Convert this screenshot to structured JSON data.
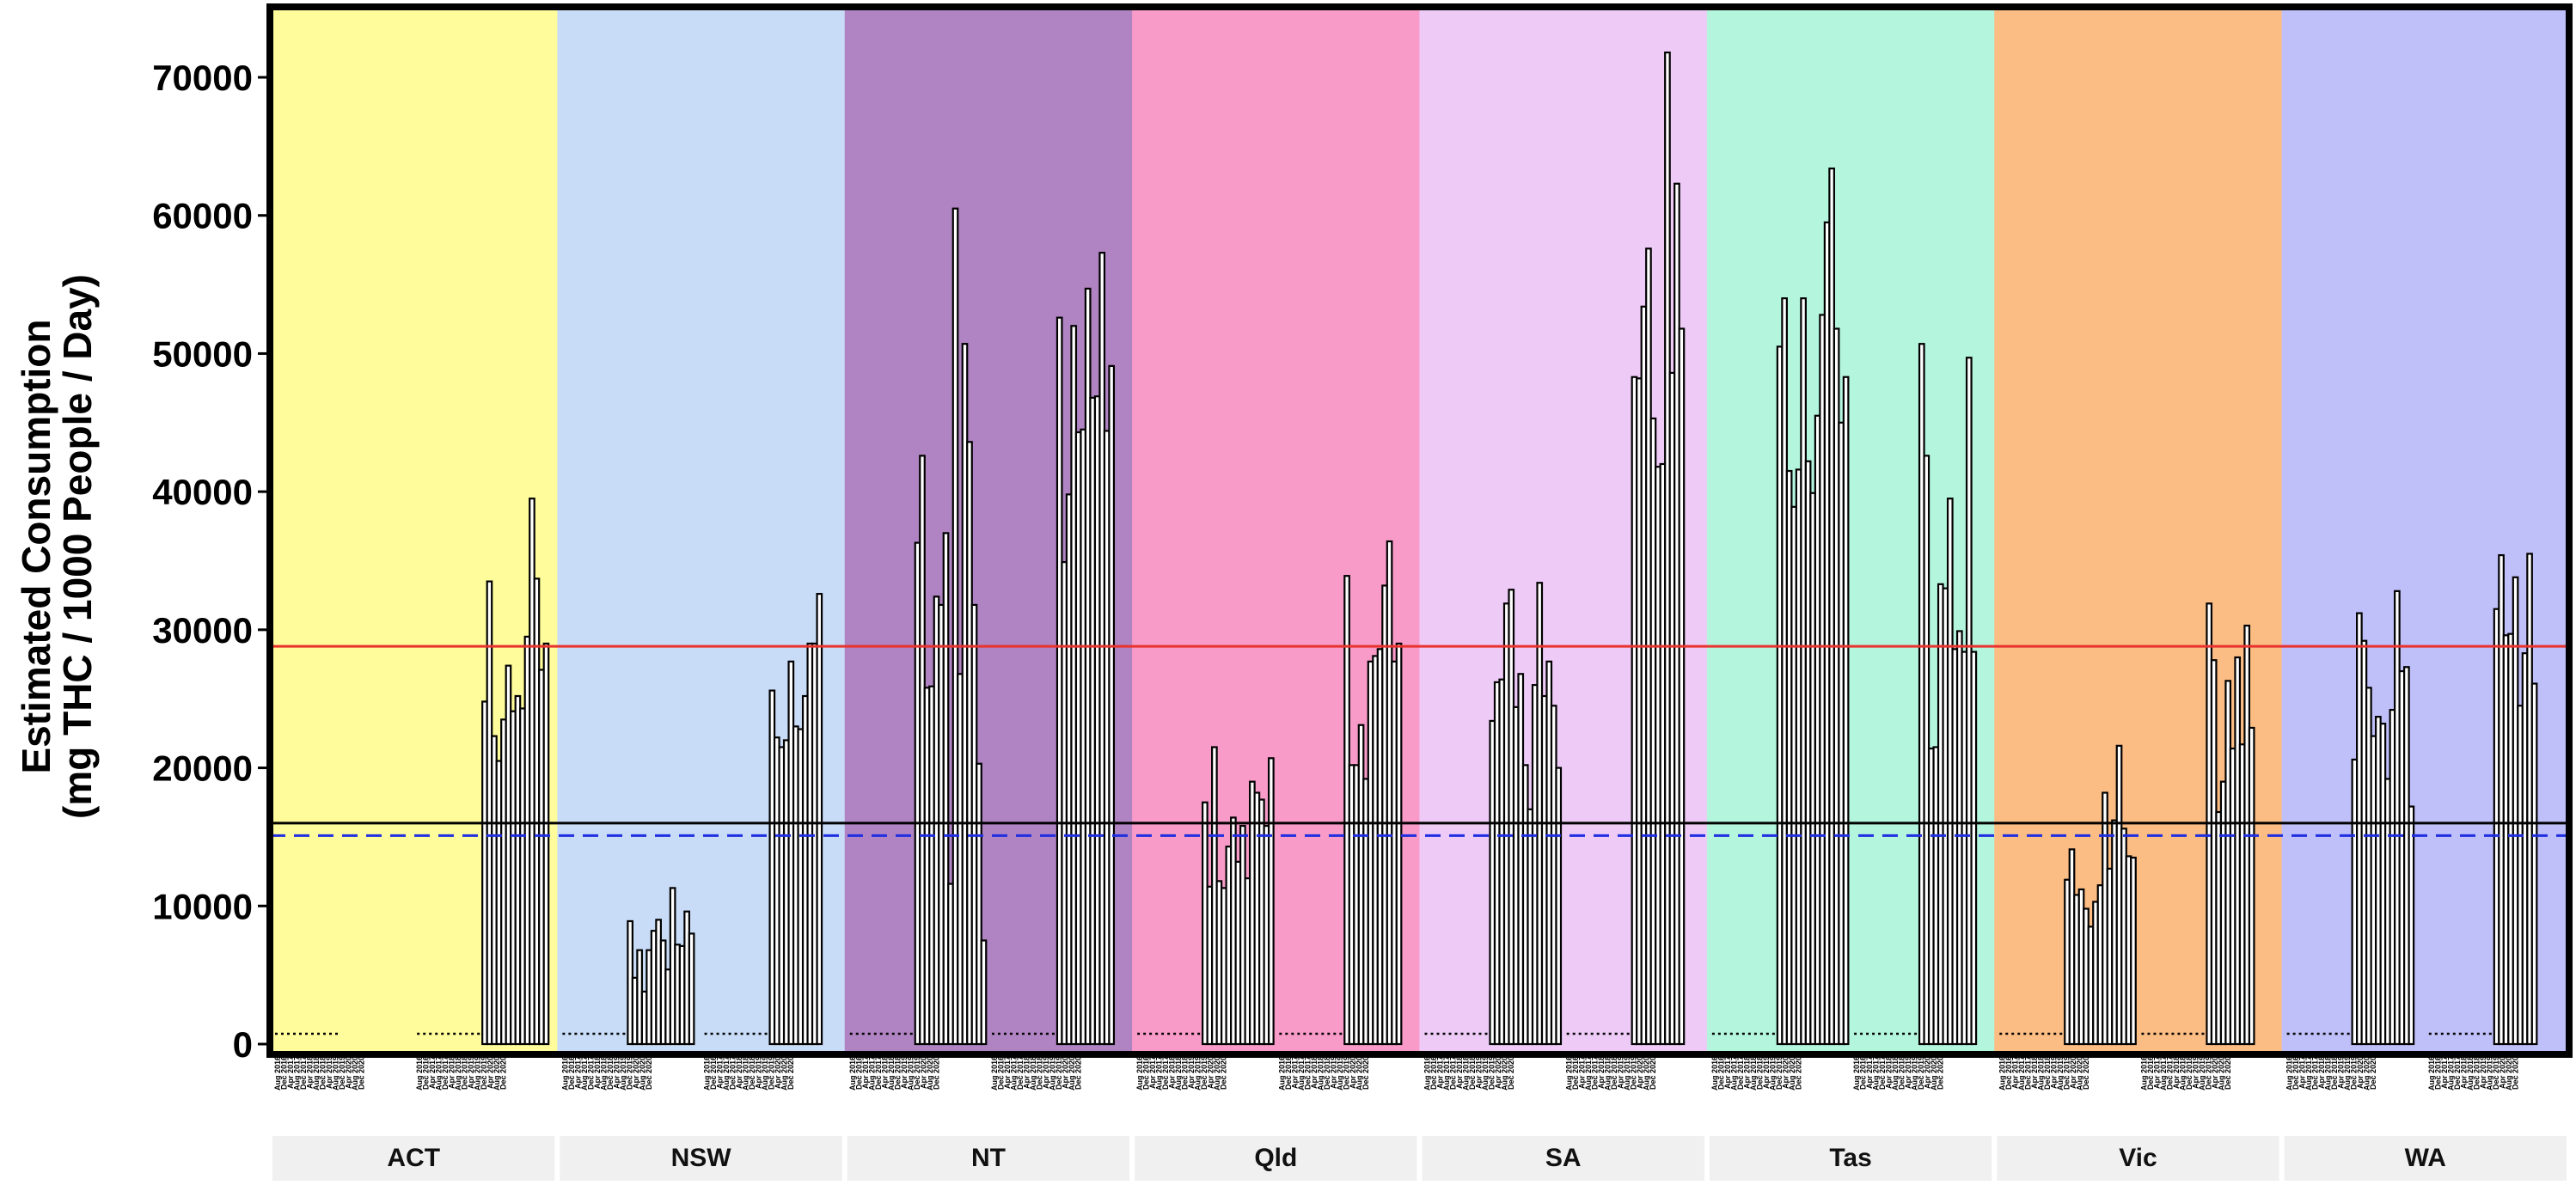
{
  "chart_data": {
    "type": "bar",
    "ylabel_line1": "Estimated Consumption",
    "ylabel_line2": "(mg THC / 1000 People / Day)",
    "ylim": [
      0,
      75000
    ],
    "yticks": [
      0,
      10000,
      20000,
      30000,
      40000,
      50000,
      60000,
      70000
    ],
    "reference_lines": [
      {
        "style": "solid",
        "color": "#e8332e",
        "value": 28800
      },
      {
        "style": "solid",
        "color": "#000000",
        "value": 16000
      },
      {
        "style": "dashed",
        "color": "#1f2ee0",
        "value": 15100
      }
    ],
    "x_ticks": [
      "Aug 2016",
      "Dec 2016",
      "Apr 2017",
      "Aug 2017",
      "Dec 2017",
      "Apr 2018",
      "Aug 2018",
      "Dec 2018",
      "Apr 2019",
      "Aug 2019",
      "Dec 2019",
      "Apr 2020",
      "Aug 2020",
      "Dec 2020"
    ],
    "panels": [
      {
        "name": "ACT",
        "color": "#fefc9b",
        "site1": [],
        "site2": [
          24800,
          33500,
          22300,
          20500,
          23500,
          27400,
          24100,
          25200,
          24300,
          29500,
          39500,
          33700,
          27100,
          29000
        ]
      },
      {
        "name": "NSW",
        "color": "#c8dcf7",
        "site1": [
          8900,
          4800,
          6800,
          3800,
          6800,
          8200,
          9000,
          7500,
          5400,
          11300,
          7200,
          7100,
          9600,
          8000
        ],
        "site2": [
          25600,
          22200,
          21500,
          22000,
          27700,
          23000,
          22800,
          25200,
          29000,
          29000,
          32600
        ]
      },
      {
        "name": "NT",
        "color": "#b084c2",
        "site1": [
          36300,
          42600,
          25800,
          25900,
          32400,
          31800,
          37000,
          11600,
          60500,
          26800,
          50700,
          43600,
          31800,
          20300,
          7500
        ],
        "site2": [
          52600,
          34900,
          39800,
          52000,
          44300,
          44500,
          54700,
          46800,
          46900,
          57300,
          44400,
          49100
        ]
      },
      {
        "name": "Qld",
        "color": "#f89bc8",
        "site1": [
          17500,
          11400,
          21500,
          11800,
          11300,
          14300,
          16400,
          13200,
          15800,
          12000,
          19000,
          18200,
          17700,
          15800,
          20700
        ],
        "site2": [
          33900,
          20200,
          20200,
          23100,
          19200,
          27700,
          28100,
          28600,
          33200,
          36400,
          27700,
          29000
        ]
      },
      {
        "name": "SA",
        "color": "#eecbf7",
        "site1": [
          23400,
          26200,
          26400,
          31900,
          32900,
          24400,
          26800,
          20200,
          17000,
          26000,
          33400,
          25200,
          27700,
          24500,
          20000
        ],
        "site2": [
          48300,
          48200,
          53400,
          57600,
          45300,
          41800,
          42000,
          71800,
          48600,
          62300,
          51800
        ]
      },
      {
        "name": "Tas",
        "color": "#b4f5de",
        "site1": [
          50500,
          54000,
          41500,
          38900,
          41600,
          54000,
          42200,
          39900,
          45500,
          52800,
          59500,
          63400,
          51800,
          45000,
          48300
        ],
        "site2": [
          50700,
          42600,
          21400,
          21500,
          33300,
          33000,
          39500,
          28600,
          29900,
          28400,
          49700,
          28400
        ]
      },
      {
        "name": "Vic",
        "color": "#fbbd83",
        "site1": [
          11900,
          14100,
          10800,
          11200,
          9800,
          8500,
          10300,
          11500,
          18200,
          12700,
          16200,
          21600,
          15600,
          13600,
          13500
        ],
        "site2": [
          31900,
          27800,
          16800,
          19000,
          26300,
          21400,
          28000,
          21700,
          30300,
          22900
        ]
      },
      {
        "name": "WA",
        "color": "#bfbff9",
        "site1": [
          20600,
          31200,
          29200,
          25800,
          22300,
          23700,
          23200,
          19200,
          24200,
          32800,
          27000,
          27300,
          17200
        ],
        "site2": [
          31500,
          35400,
          29600,
          29700,
          33800,
          24500,
          28300,
          35500,
          26100
        ]
      }
    ]
  }
}
